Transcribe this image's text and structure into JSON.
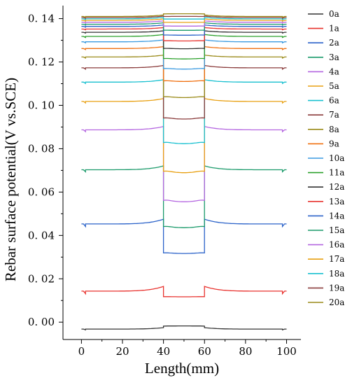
{
  "chart_data": {
    "type": "line",
    "xlabel": "Length(mm)",
    "ylabel": "Rebar surface potential(V vs.SCE)",
    "xlim": [
      -9,
      107
    ],
    "ylim": [
      -0.008,
      0.146
    ],
    "x_ticks": [
      "0",
      "20",
      "40",
      "60",
      "80",
      "100"
    ],
    "y_ticks": [
      "0. 00",
      "0. 02",
      "0. 04",
      "0. 06",
      "0. 08",
      "0. 10",
      "0. 12",
      "0. 14"
    ],
    "legend_position": "right",
    "series": [
      {
        "name": "0a",
        "color": "#333333",
        "outside": -0.0032,
        "inside": -0.0018,
        "edge": 0.0003
      },
      {
        "name": "1a",
        "color": "#e8322e",
        "outside": 0.0143,
        "inside": 0.0118,
        "edge": 0.001
      },
      {
        "name": "2a",
        "color": "#2a62c9",
        "outside": 0.0453,
        "inside": 0.0322,
        "edge": 0.001
      },
      {
        "name": "3a",
        "color": "#1a9a6a",
        "outside": 0.0703,
        "inside": 0.0446,
        "edge": 0.0008
      },
      {
        "name": "4a",
        "color": "#b466e0",
        "outside": 0.0887,
        "inside": 0.0568,
        "edge": 0.0007
      },
      {
        "name": "5a",
        "color": "#e8a012",
        "outside": 0.1018,
        "inside": 0.0702,
        "edge": 0.0006
      },
      {
        "name": "6a",
        "color": "#19c0d0",
        "outside": 0.1107,
        "inside": 0.0834,
        "edge": 0.0005
      },
      {
        "name": "7a",
        "color": "#8a3b3b",
        "outside": 0.1173,
        "inside": 0.0946,
        "edge": 0.0005
      },
      {
        "name": "8a",
        "color": "#9a8a18",
        "outside": 0.1223,
        "inside": 0.1043,
        "edge": 0.0004
      },
      {
        "name": "9a",
        "color": "#f07010",
        "outside": 0.1262,
        "inside": 0.1116,
        "edge": 0.0004
      },
      {
        "name": "10a",
        "color": "#3a9ae0",
        "outside": 0.1293,
        "inside": 0.1172,
        "edge": 0.0004
      },
      {
        "name": "11a",
        "color": "#2aa02a",
        "outside": 0.1318,
        "inside": 0.1218,
        "edge": 0.0004
      },
      {
        "name": "12a",
        "color": "#333333",
        "outside": 0.1337,
        "inside": 0.1264,
        "edge": 0.0003
      },
      {
        "name": "13a",
        "color": "#e8322e",
        "outside": 0.1352,
        "inside": 0.1299,
        "edge": 0.0003
      },
      {
        "name": "14a",
        "color": "#2a62c9",
        "outside": 0.1364,
        "inside": 0.1325,
        "edge": 0.0003
      },
      {
        "name": "15a",
        "color": "#1a9a6a",
        "outside": 0.1374,
        "inside": 0.1347,
        "edge": 0.0003
      },
      {
        "name": "16a",
        "color": "#b466e0",
        "outside": 0.1383,
        "inside": 0.1366,
        "edge": 0.0003
      },
      {
        "name": "17a",
        "color": "#e8a012",
        "outside": 0.1392,
        "inside": 0.1383,
        "edge": 0.0003
      },
      {
        "name": "18a",
        "color": "#19c0d0",
        "outside": 0.1399,
        "inside": 0.1398,
        "edge": 0.0003
      },
      {
        "name": "19a",
        "color": "#8a3b3b",
        "outside": 0.1405,
        "inside": 0.141,
        "edge": 0.0003
      },
      {
        "name": "20a",
        "color": "#9a8a18",
        "outside": 0.141,
        "inside": 0.1422,
        "edge": 0.0003
      }
    ]
  }
}
